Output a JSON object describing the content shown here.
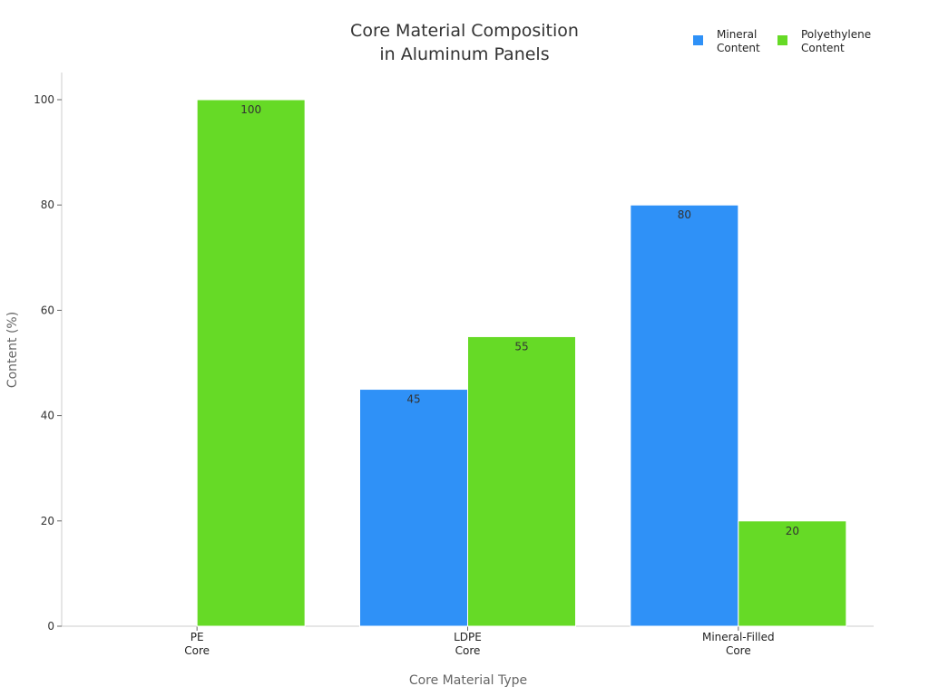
{
  "chart_data": {
    "type": "bar",
    "title": [
      "Core Material Composition",
      "in Aluminum Panels"
    ],
    "xlabel": "Core Material Type",
    "ylabel": "Content (%)",
    "categories": [
      [
        "PE",
        "Core"
      ],
      [
        "LDPE",
        "Core"
      ],
      [
        "Mineral-Filled",
        "Core"
      ]
    ],
    "series": [
      {
        "name": [
          "Mineral",
          "Content"
        ],
        "color": "#2f91f7",
        "values": [
          0,
          45,
          80
        ]
      },
      {
        "name": [
          "Polyethylene",
          "Content"
        ],
        "color": "#66da26",
        "values": [
          100,
          55,
          20
        ]
      }
    ],
    "ylim": [
      0,
      100
    ],
    "yticks": [
      0,
      20,
      40,
      60,
      80,
      100
    ],
    "grid": false,
    "legend": "top-right"
  }
}
